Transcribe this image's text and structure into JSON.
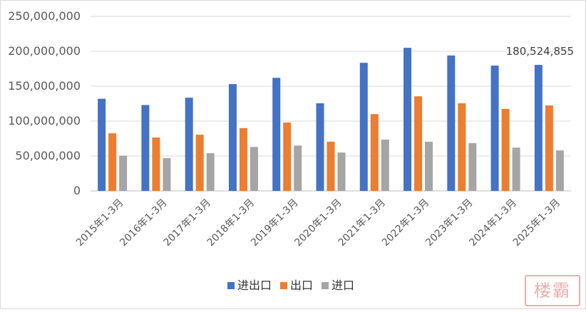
{
  "chart_data": {
    "type": "bar",
    "categories": [
      "2015年1-3月",
      "2016年1-3月",
      "2017年1-3月",
      "2018年1-3月",
      "2019年1-3月",
      "2020年1-3月",
      "2021年1-3月",
      "2022年1-3月",
      "2023年1-3月",
      "2024年1-3月",
      "2025年1-3月"
    ],
    "series": [
      {
        "name": "进出口",
        "color": "#4472c4",
        "values": [
          132000000,
          123000000,
          133500000,
          153000000,
          162000000,
          125500000,
          183500000,
          205000000,
          194000000,
          179500000,
          180524855
        ]
      },
      {
        "name": "出口",
        "color": "#ed7d31",
        "values": [
          82500000,
          76500000,
          80500000,
          90000000,
          98000000,
          70500000,
          110000000,
          135500000,
          125500000,
          117500000,
          122500000
        ]
      },
      {
        "name": "进口",
        "color": "#a5a5a5",
        "values": [
          50500000,
          47000000,
          54000000,
          63000000,
          65000000,
          55000000,
          73500000,
          70500000,
          68500000,
          62000000,
          58000000
        ]
      }
    ],
    "ylim": [
      0,
      250000000
    ],
    "yticks": [
      "0",
      "50,000,000",
      "100,000,000",
      "150,000,000",
      "200,000,000",
      "250,000,000"
    ],
    "ytick_values": [
      0,
      50000000,
      100000000,
      150000000,
      200000000,
      250000000
    ],
    "grid": true,
    "legend_position": "bottom",
    "data_labels": [
      {
        "series": 0,
        "index": 10,
        "text": "180,524,855"
      }
    ]
  },
  "watermark": {
    "text": "楼霸",
    "color": "#e8a0a0"
  }
}
